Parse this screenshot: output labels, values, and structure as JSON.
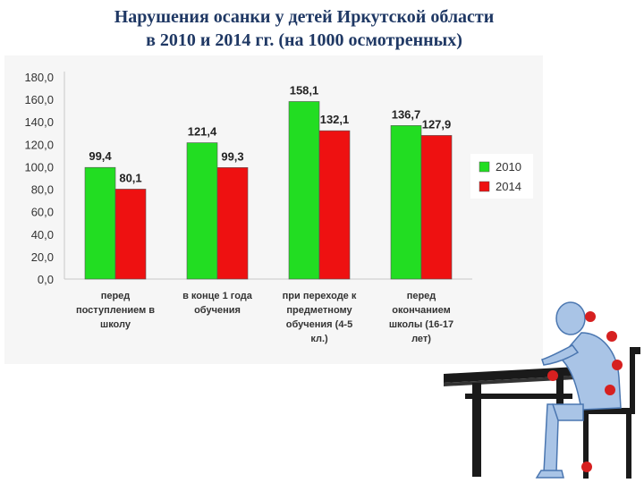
{
  "slide": {
    "title_line1": "Нарушения осанки у детей Иркутской области",
    "title_line2": "в 2010 и 2014 гг. (на 1000 осмотренных)"
  },
  "colors": {
    "series_2010": "#22dd22",
    "series_2014": "#ee1111",
    "title": "#1f3864",
    "chart_background": "#f6f6f6"
  },
  "chart_data": {
    "type": "bar",
    "categories": [
      [
        "перед",
        "поступлением в",
        "школу"
      ],
      [
        "в конце 1 года",
        "обучения"
      ],
      [
        "при переходе к",
        "предметному",
        "обучения (4-5",
        "кл.)"
      ],
      [
        "перед",
        "окончанием",
        "школы (16-17",
        "лет)"
      ]
    ],
    "series": [
      {
        "name": "2010",
        "values": [
          99.4,
          121.4,
          158.1,
          136.7
        ],
        "labels": [
          "99,4",
          "121,4",
          "158,1",
          "136,7"
        ]
      },
      {
        "name": "2014",
        "values": [
          80.1,
          99.3,
          132.1,
          127.9
        ],
        "labels": [
          "80,1",
          "99,3",
          "132,1",
          "127,9"
        ]
      }
    ],
    "yticks": [
      0,
      20,
      40,
      60,
      80,
      100,
      120,
      140,
      160,
      180
    ],
    "ytick_labels": [
      "0,0",
      "20,0",
      "40,0",
      "60,0",
      "80,0",
      "100,0",
      "120,0",
      "140,0",
      "160,0",
      "180,0"
    ],
    "ylim": [
      0,
      180
    ],
    "title": "",
    "xlabel": "",
    "ylabel": "",
    "grid": false,
    "legend_position": "right"
  }
}
